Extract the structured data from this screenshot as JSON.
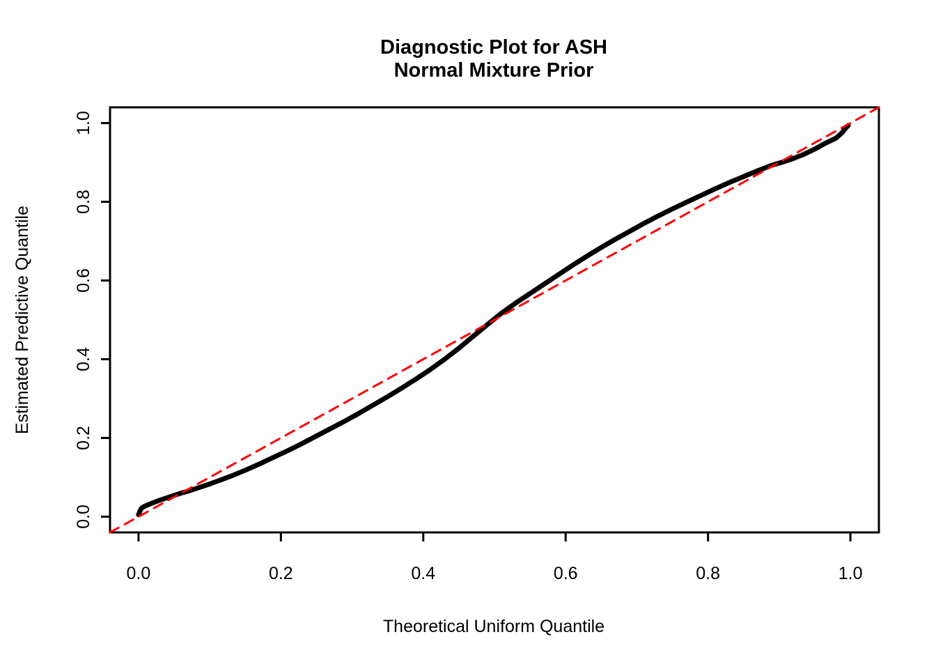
{
  "figure": {
    "background": "#ffffff",
    "foreground": "#000000"
  },
  "chart_data": {
    "type": "line",
    "subtype": "pp-diagnostic-plot",
    "title_line1": "Diagnostic Plot for ASH",
    "title_line2": "Normal Mixture Prior",
    "xlabel": "Theoretical Uniform Quantile",
    "ylabel": "Estimated Predictive Quantile",
    "xlim": [
      -0.04,
      1.04
    ],
    "ylim": [
      -0.04,
      1.04
    ],
    "grid": false,
    "legend": "none",
    "x_ticks": {
      "values": [
        0.0,
        0.2,
        0.4,
        0.6,
        0.8,
        1.0
      ],
      "labels": [
        "0.0",
        "0.2",
        "0.4",
        "0.6",
        "0.8",
        "1.0"
      ]
    },
    "y_ticks": {
      "values": [
        0.0,
        0.2,
        0.4,
        0.6,
        0.8,
        1.0
      ],
      "labels": [
        "0.0",
        "0.2",
        "0.4",
        "0.6",
        "0.8",
        "1.0"
      ]
    },
    "series": [
      {
        "name": "observed-predictive-quantiles",
        "color": "#000000",
        "line_style": "solid",
        "line_width": 7,
        "points": [
          [
            0.0,
            0.005
          ],
          [
            0.002,
            0.014
          ],
          [
            0.004,
            0.021
          ],
          [
            0.008,
            0.026
          ],
          [
            0.013,
            0.03
          ],
          [
            0.02,
            0.035
          ],
          [
            0.03,
            0.042
          ],
          [
            0.04,
            0.048
          ],
          [
            0.05,
            0.054
          ],
          [
            0.06,
            0.06
          ],
          [
            0.07,
            0.065
          ],
          [
            0.08,
            0.071
          ],
          [
            0.09,
            0.077
          ],
          [
            0.1,
            0.083
          ],
          [
            0.115,
            0.093
          ],
          [
            0.13,
            0.103
          ],
          [
            0.15,
            0.118
          ],
          [
            0.17,
            0.134
          ],
          [
            0.19,
            0.151
          ],
          [
            0.21,
            0.168
          ],
          [
            0.23,
            0.186
          ],
          [
            0.25,
            0.205
          ],
          [
            0.27,
            0.224
          ],
          [
            0.29,
            0.243
          ],
          [
            0.31,
            0.263
          ],
          [
            0.33,
            0.284
          ],
          [
            0.35,
            0.305
          ],
          [
            0.37,
            0.327
          ],
          [
            0.39,
            0.35
          ],
          [
            0.41,
            0.374
          ],
          [
            0.43,
            0.4
          ],
          [
            0.45,
            0.428
          ],
          [
            0.47,
            0.458
          ],
          [
            0.49,
            0.488
          ],
          [
            0.51,
            0.517
          ],
          [
            0.53,
            0.543
          ],
          [
            0.55,
            0.567
          ],
          [
            0.57,
            0.591
          ],
          [
            0.59,
            0.615
          ],
          [
            0.61,
            0.639
          ],
          [
            0.63,
            0.662
          ],
          [
            0.65,
            0.684
          ],
          [
            0.67,
            0.705
          ],
          [
            0.69,
            0.725
          ],
          [
            0.71,
            0.745
          ],
          [
            0.73,
            0.764
          ],
          [
            0.75,
            0.782
          ],
          [
            0.77,
            0.799
          ],
          [
            0.79,
            0.816
          ],
          [
            0.81,
            0.833
          ],
          [
            0.83,
            0.849
          ],
          [
            0.85,
            0.864
          ],
          [
            0.87,
            0.879
          ],
          [
            0.89,
            0.893
          ],
          [
            0.905,
            0.901
          ],
          [
            0.92,
            0.91
          ],
          [
            0.935,
            0.921
          ],
          [
            0.95,
            0.934
          ],
          [
            0.965,
            0.949
          ],
          [
            0.98,
            0.962
          ],
          [
            0.988,
            0.975
          ],
          [
            0.992,
            0.984
          ],
          [
            0.995,
            0.99
          ],
          [
            0.997,
            0.994
          ]
        ]
      },
      {
        "name": "reference-identity-line",
        "color": "#FF0000",
        "line_style": "dashed",
        "line_width": 3,
        "points": [
          [
            -0.04,
            -0.04
          ],
          [
            1.04,
            1.04
          ]
        ]
      }
    ]
  }
}
